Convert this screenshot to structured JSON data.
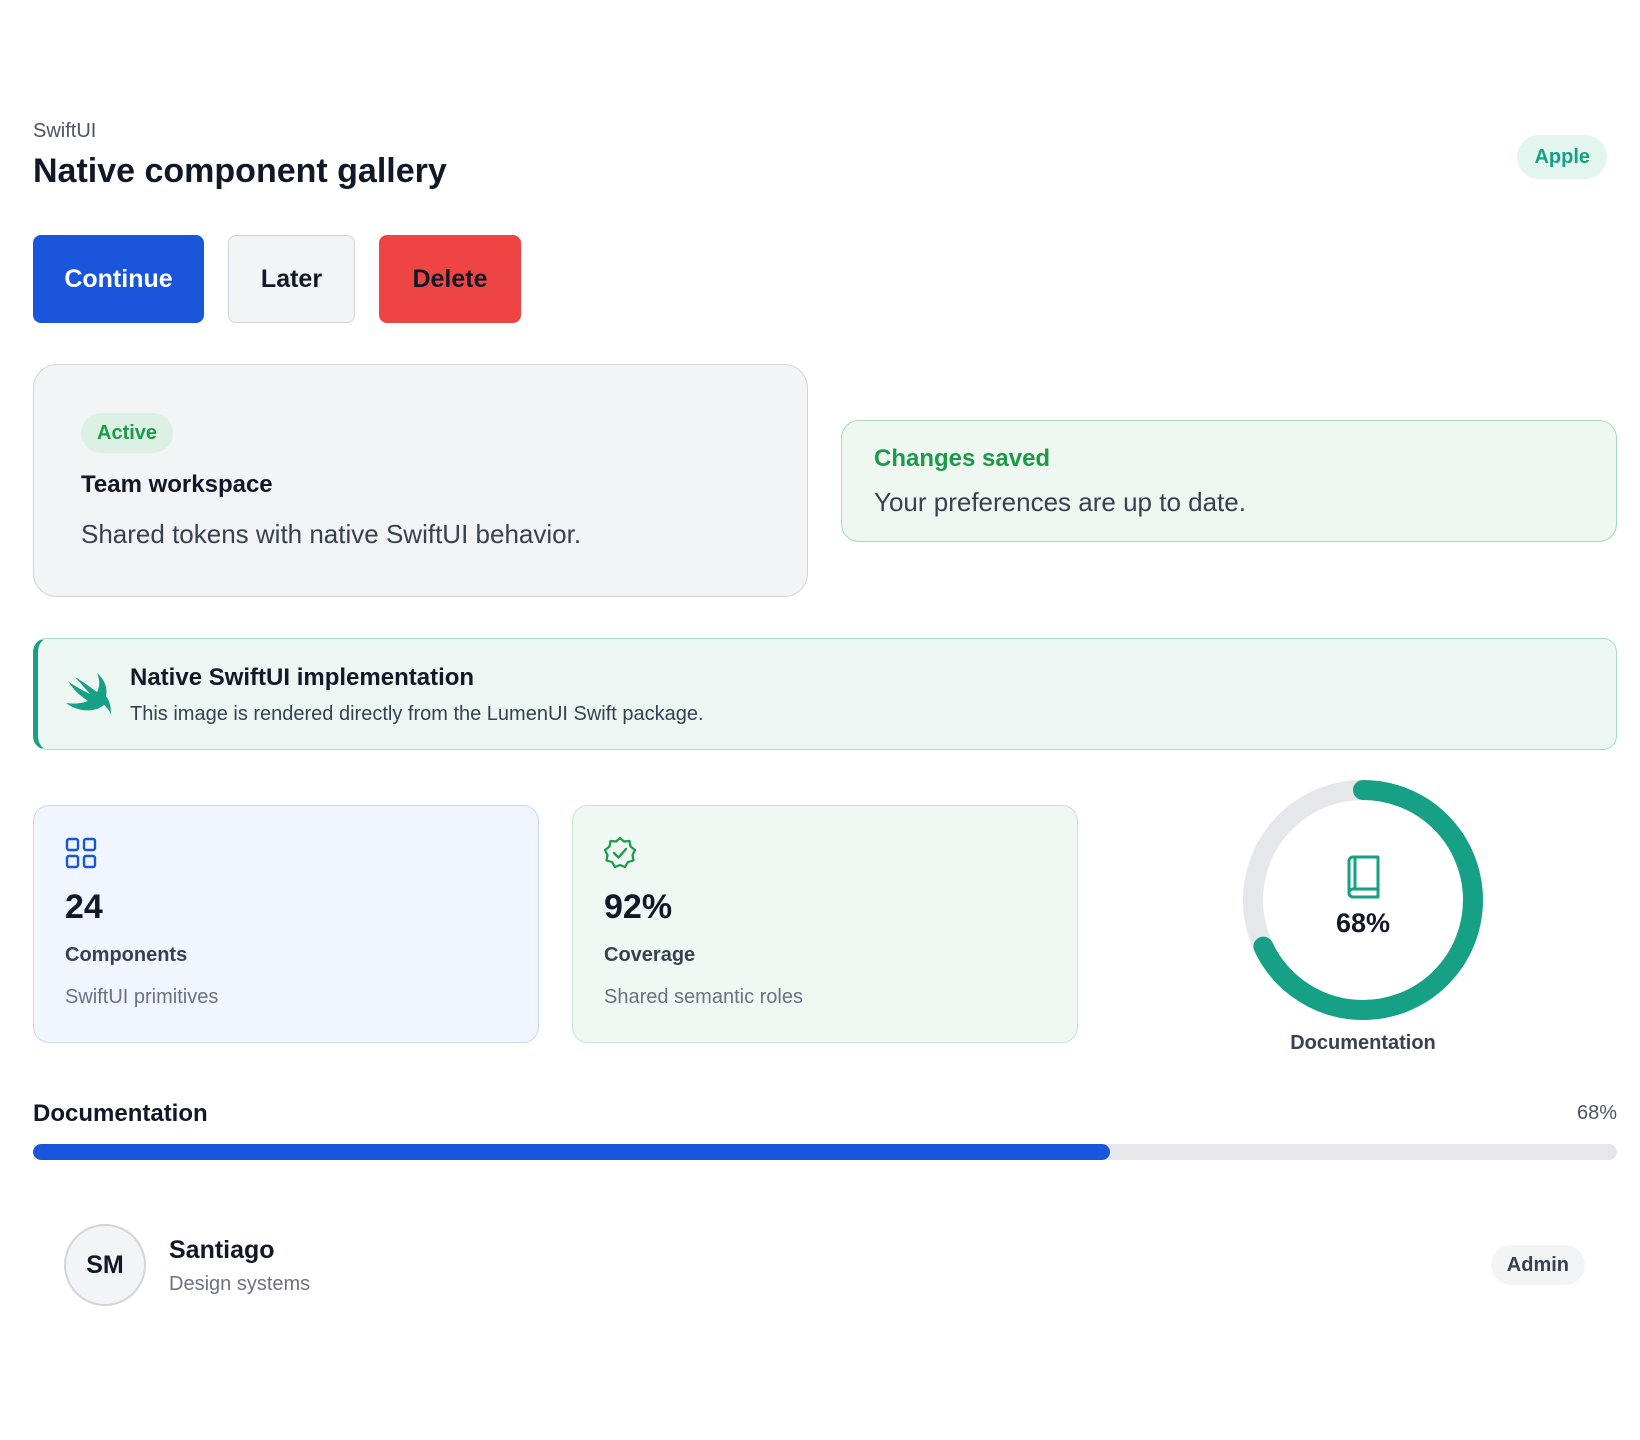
{
  "header": {
    "eyebrow": "SwiftUI",
    "title": "Native component gallery",
    "badge": "Apple"
  },
  "actions": {
    "continue_label": "Continue",
    "later_label": "Later",
    "delete_label": "Delete"
  },
  "workspace_card": {
    "status": "Active",
    "title": "Team workspace",
    "description": "Shared tokens with native SwiftUI behavior."
  },
  "toast": {
    "title": "Changes saved",
    "message": "Your preferences are up to date."
  },
  "callout": {
    "icon": "swift-logo-icon",
    "title": "Native SwiftUI implementation",
    "message": "This image is rendered directly from the LumenUI Swift package."
  },
  "stats": [
    {
      "icon": "grid-icon",
      "value": "24",
      "label": "Components",
      "sub": "SwiftUI primitives"
    },
    {
      "icon": "verified-badge-icon",
      "value": "92%",
      "label": "Coverage",
      "sub": "Shared semantic roles"
    }
  ],
  "ring": {
    "icon": "book-icon",
    "value_label": "68%",
    "fraction": 0.68,
    "caption": "Documentation"
  },
  "progress": {
    "title": "Documentation",
    "value_label": "68%",
    "fraction": 0.68
  },
  "user": {
    "initials": "SM",
    "name": "Santiago",
    "role": "Design systems",
    "badge": "Admin"
  },
  "colors": {
    "primary": "#1a56db",
    "danger": "#ef4444",
    "success": "#1c9a4a",
    "teal": "#16a085",
    "track": "#e5e7eb"
  }
}
